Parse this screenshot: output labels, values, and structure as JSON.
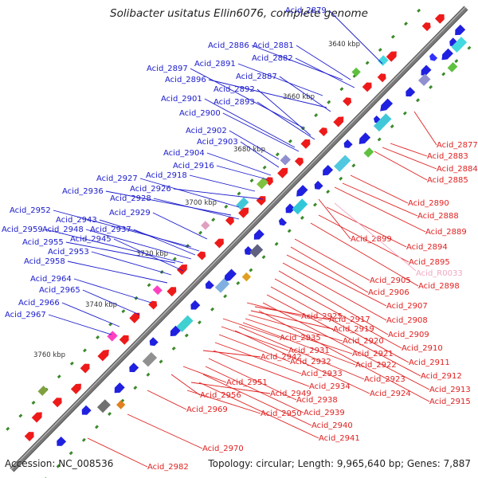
{
  "title": "Solibacter usitatus Ellin6076, complete genome",
  "footer": {
    "accession": "Accession: NC_008536",
    "summary": "Topology: circular; Length: 9,965,640 bp; Genes: 7,887"
  },
  "colors": {
    "plus_label": "#1a1acc",
    "minus_label": "#e02020",
    "rna_label": "#f0a8c0",
    "backbone": "#7a7a7a"
  },
  "scale_marks": [
    {
      "label": "3640 kbp",
      "pos": 3640
    },
    {
      "label": "3660 kbp",
      "pos": 3660
    },
    {
      "label": "3680 kbp",
      "pos": 3680
    },
    {
      "label": "3700 kbp",
      "pos": 3700
    },
    {
      "label": "3720 kbp",
      "pos": 3720
    },
    {
      "label": "3740 kbp",
      "pos": 3740
    },
    {
      "label": "3760 kbp",
      "pos": 3760
    }
  ],
  "plus_labels": [
    "Acid_2879",
    "Acid_2886",
    "Acid_2881",
    "Acid_2882",
    "Acid_2897",
    "Acid_2891",
    "Acid_2896",
    "Acid_2887",
    "Acid_2892",
    "Acid_2893",
    "Acid_2901",
    "Acid_2900",
    "Acid_2902",
    "Acid_2903",
    "Acid_2904",
    "Acid_2916",
    "Acid_2927",
    "Acid_2918",
    "Acid_2926",
    "Acid_2936",
    "Acid_2928",
    "Acid_2929",
    "Acid_2952",
    "Acid_2943",
    "Acid_2959",
    "Acid_2948",
    "Acid_2937",
    "Acid_2955",
    "Acid_2945",
    "Acid_2953",
    "Acid_2958",
    "Acid_2964",
    "Acid_2965",
    "Acid_2966",
    "Acid_2967"
  ],
  "minus_labels": [
    "Acid_2877",
    "Acid_2883",
    "Acid_2884",
    "Acid_2885",
    "Acid_2890",
    "Acid_2888",
    "Acid_2889",
    "Acid_2899",
    "Acid_2894",
    "Acid_2895",
    "Acid_2898",
    "Acid_2905",
    "Acid_2906",
    "Acid_2907",
    "Acid_2908",
    "Acid_2909",
    "Acid_2910",
    "Acid_2911",
    "Acid_2912",
    "Acid_2913",
    "Acid_2915",
    "Acid_2925",
    "Acid_2917",
    "Acid_2919",
    "Acid_2920",
    "Acid_2921",
    "Acid_2922",
    "Acid_2923",
    "Acid_2924",
    "Acid_2935",
    "Acid_2931",
    "Acid_2932",
    "Acid_2933",
    "Acid_2934",
    "Acid_2942",
    "Acid_2938",
    "Acid_2939",
    "Acid_2940",
    "Acid_2941",
    "Acid_2951",
    "Acid_2956",
    "Acid_2949",
    "Acid_2950",
    "Acid_2969",
    "Acid_2970",
    "Acid_2982"
  ],
  "rna_labels": [
    "Acid_R0033"
  ]
}
